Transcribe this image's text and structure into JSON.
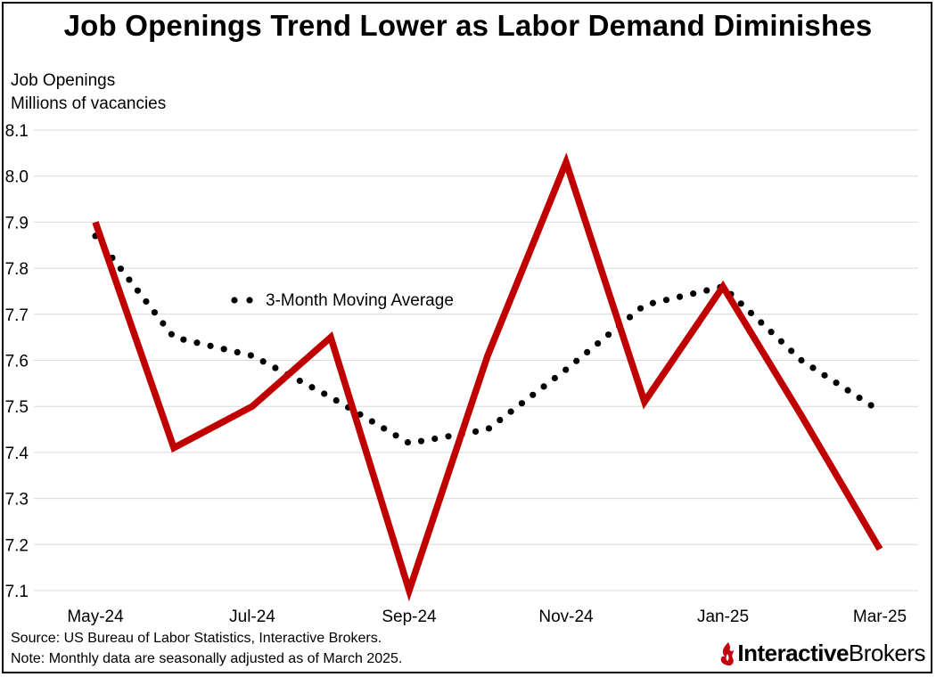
{
  "title": "Job Openings Trend Lower as Labor Demand Diminishes",
  "footnotes": {
    "source": "Source: US Bureau of Labor Statistics, Interactive Brokers.",
    "note": "Note: Monthly data are seasonally adjusted as of March 2025."
  },
  "logo": {
    "bold": "Interactive",
    "regular": "Brokers",
    "color": "#c3020d"
  },
  "chart_data": {
    "type": "line",
    "title": "Job Openings Trend Lower as Labor Demand Diminishes",
    "ylabel": [
      "Job Openings",
      "Millions of vacancies"
    ],
    "xlabel": "",
    "x": [
      "May-24",
      "Jun-24",
      "Jul-24",
      "Aug-24",
      "Sep-24",
      "Oct-24",
      "Nov-24",
      "Dec-24",
      "Jan-25",
      "Feb-25",
      "Mar-25"
    ],
    "x_tick_labels": [
      "May-24",
      "Jul-24",
      "Sep-24",
      "Nov-24",
      "Jan-25",
      "Mar-25"
    ],
    "ylim": [
      7.1,
      8.1
    ],
    "yticks": [
      7.1,
      7.2,
      7.3,
      7.4,
      7.5,
      7.6,
      7.7,
      7.8,
      7.9,
      8.0,
      8.1
    ],
    "ytick_labels": [
      "7.1",
      "7.2",
      "7.3",
      "7.4",
      "7.5",
      "7.6",
      "7.7",
      "7.8",
      "7.9",
      "8.0",
      "8.1"
    ],
    "grid": true,
    "series": [
      {
        "values": [
          7.9,
          7.41,
          7.5,
          7.65,
          7.1,
          7.61,
          8.03,
          7.51,
          7.76,
          7.48,
          7.19
        ],
        "color": "#c00000",
        "style": "solid"
      },
      {
        "name": "3-Month Moving Average",
        "values": [
          7.87,
          7.65,
          7.61,
          7.52,
          7.42,
          7.45,
          7.58,
          7.72,
          7.76,
          7.6,
          7.49
        ],
        "color": "#000000",
        "style": "dotted"
      }
    ],
    "legend": {
      "placement": "inline",
      "text": "3-Month Moving Average"
    }
  }
}
